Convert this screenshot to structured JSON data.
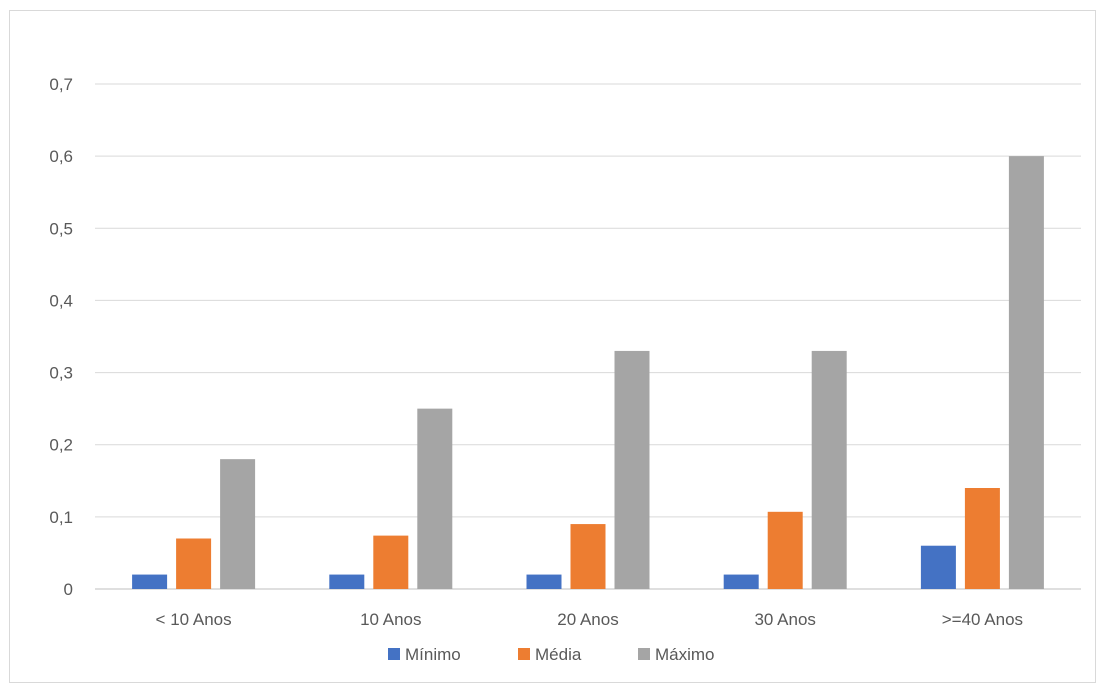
{
  "chart_data": {
    "type": "bar",
    "title": "",
    "xlabel": "",
    "ylabel": "",
    "categories": [
      "< 10 Anos",
      "10 Anos",
      "20 Anos",
      "30 Anos",
      ">=40 Anos"
    ],
    "series": [
      {
        "name": "Mínimo",
        "values": [
          0.02,
          0.02,
          0.02,
          0.02,
          0.06
        ],
        "color": "#4472c4"
      },
      {
        "name": "Média",
        "values": [
          0.07,
          0.074,
          0.09,
          0.107,
          0.14
        ],
        "color": "#ed7d31"
      },
      {
        "name": "Máximo",
        "values": [
          0.18,
          0.25,
          0.33,
          0.33,
          0.6
        ],
        "color": "#a5a5a5"
      }
    ],
    "ylim": [
      0,
      0.7
    ],
    "yticks": [
      0,
      0.1,
      0.2,
      0.3,
      0.4,
      0.5,
      0.6,
      0.7
    ],
    "ytick_labels": [
      "0",
      "0,1",
      "0,2",
      "0,3",
      "0,4",
      "0,5",
      "0,6",
      "0,7"
    ],
    "grid": true,
    "legend_position": "bottom"
  }
}
